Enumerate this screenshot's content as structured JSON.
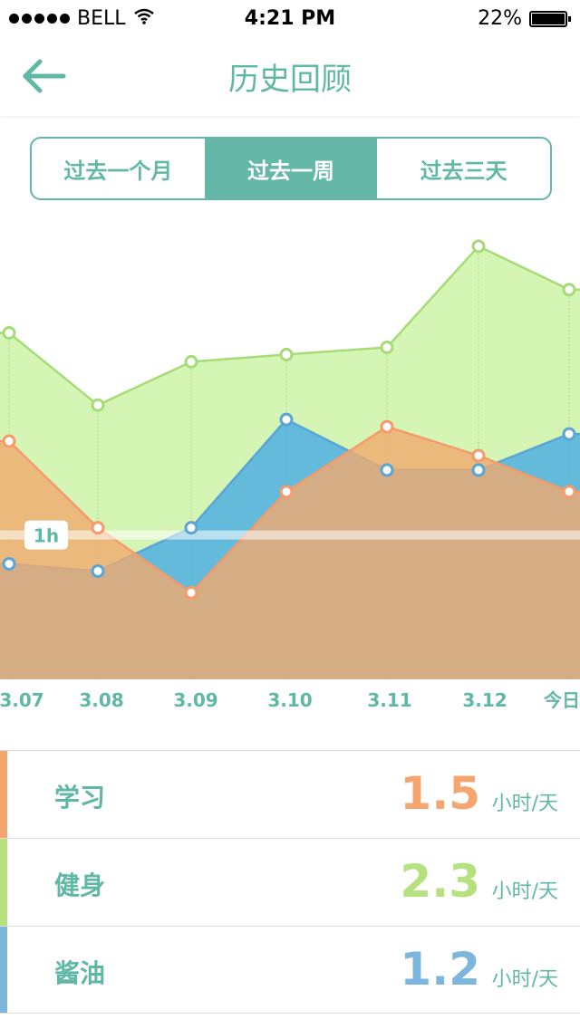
{
  "status": {
    "carrier": "BELL",
    "time": "4:21 PM",
    "battery": "22%"
  },
  "nav": {
    "title": "历史回顾",
    "back_icon": "arrow-left-icon"
  },
  "segments": {
    "items": [
      "过去一个月",
      "过去一周",
      "过去三天"
    ],
    "selected": "过去一周"
  },
  "chart_data": {
    "type": "area",
    "categories": [
      "3.07",
      "3.08",
      "3.09",
      "3.10",
      "3.11",
      "3.12",
      "今日"
    ],
    "reference_label": "1h",
    "reference_value": 1,
    "series": [
      {
        "name": "健身",
        "color": "#b5e27e",
        "values": [
          2.4,
          1.9,
          2.2,
          2.25,
          2.3,
          3.0,
          2.7
        ]
      },
      {
        "name": "学习",
        "color": "#f6a56e",
        "values": [
          1.65,
          1.05,
          0.6,
          1.3,
          1.75,
          1.55,
          1.3
        ]
      },
      {
        "name": "酱油",
        "color": "#5fb3df",
        "values": [
          0.8,
          0.75,
          1.05,
          1.8,
          1.45,
          1.45,
          1.7
        ]
      }
    ],
    "ylim": [
      0,
      3.2
    ]
  },
  "legend": [
    {
      "label": "学习",
      "value": "1.5",
      "unit": "小时/天",
      "color": "#f6a56e"
    },
    {
      "label": "健身",
      "value": "2.3",
      "unit": "小时/天",
      "color": "#b5e27e"
    },
    {
      "label": "酱油",
      "value": "1.2",
      "unit": "小时/天",
      "color": "#7db6dd"
    }
  ]
}
